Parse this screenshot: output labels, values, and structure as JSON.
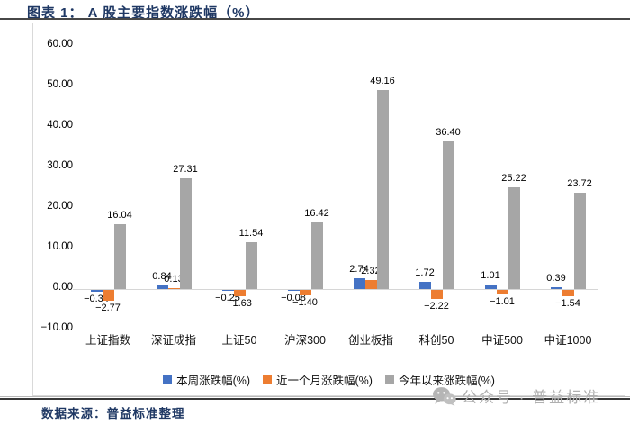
{
  "header": {
    "title": "图表 1： A 股主要指数涨跌幅（%）"
  },
  "chart_data": {
    "type": "bar",
    "title": "A 股主要指数涨跌幅（%）",
    "categories": [
      "上证指数",
      "深证成指",
      "上证50",
      "沪深300",
      "创业板指",
      "科创50",
      "中证500",
      "中证1000"
    ],
    "series": [
      {
        "name": "本周涨跌幅(%)",
        "color": "#4472C4",
        "values": [
          -0.34,
          0.84,
          -0.25,
          -0.08,
          2.74,
          1.72,
          1.01,
          0.39
        ]
      },
      {
        "name": "近一个月涨跌幅(%)",
        "color": "#ED7D31",
        "values": [
          -2.77,
          0.13,
          -1.63,
          -1.4,
          2.32,
          -2.22,
          -1.01,
          -1.54
        ]
      },
      {
        "name": "今年以来涨跌幅(%)",
        "color": "#A6A6A6",
        "values": [
          16.04,
          27.31,
          11.54,
          16.42,
          49.16,
          36.4,
          25.22,
          23.72
        ]
      }
    ],
    "ylim": [
      -10,
      60
    ],
    "y_ticks": [
      60,
      50,
      40,
      30,
      20,
      10,
      0,
      -10
    ],
    "grid": false,
    "legend_position": "bottom",
    "data_labels": true
  },
  "footer": {
    "source": "数据来源：普益标准整理",
    "watermark": "公众号 · 普益标准"
  },
  "colors": {
    "title_navy": "#1F3864",
    "series_blue": "#4472C4",
    "series_orange": "#ED7D31",
    "series_gray": "#A6A6A6",
    "rule_dark": "#474747",
    "card_border": "#D9D9D9",
    "watermark_gray": "#B0B0B0"
  }
}
